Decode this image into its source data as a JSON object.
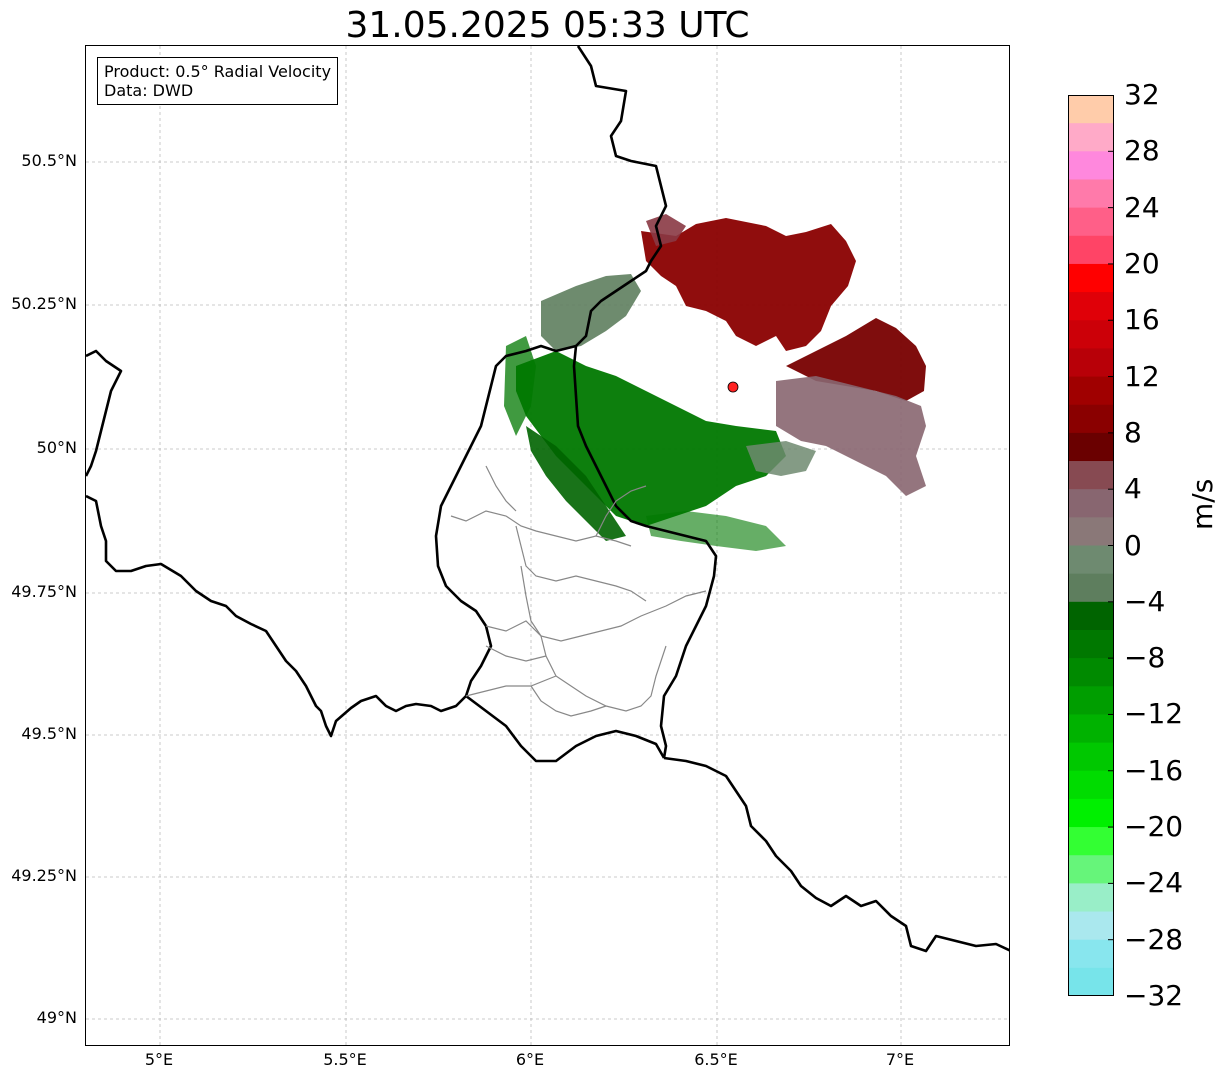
{
  "title": "31.05.2025 05:33 UTC",
  "info_box": {
    "line1": "Product: 0.5° Radial Velocity",
    "line2": "Data: DWD"
  },
  "axes": {
    "lat_ticks": [
      "50.5°N",
      "50.25°N",
      "50°N",
      "49.75°N",
      "49.5°N",
      "49.25°N",
      "49°N"
    ],
    "lon_ticks": [
      "5°E",
      "5.5°E",
      "6°E",
      "6.5°E",
      "7°E"
    ]
  },
  "colorbar": {
    "unit": "m/s",
    "range": [
      -32,
      32
    ],
    "tick_labels": [
      "32",
      "28",
      "24",
      "20",
      "16",
      "12",
      "8",
      "4",
      "0",
      "−4",
      "−8",
      "−12",
      "−16",
      "−20",
      "−24",
      "−28",
      "−32"
    ],
    "colors_top_to_bottom": [
      "#ffccaa",
      "#ffaac8",
      "#ff88dd",
      "#ff7aaa",
      "#ff5f88",
      "#ff4466",
      "#ff0000",
      "#e00008",
      "#cc0008",
      "#b80008",
      "#a00000",
      "#8a0000",
      "#6a0000",
      "#874a52",
      "#886670",
      "#8a7878",
      "#6e8a70",
      "#5e7e5e",
      "#006400",
      "#007800",
      "#008a00",
      "#009e00",
      "#00b200",
      "#00c800",
      "#00dc00",
      "#00f000",
      "#33ff33",
      "#66f57a",
      "#99eec8",
      "#aae8ee",
      "#88e6ee",
      "#77e4ea"
    ]
  },
  "map": {
    "radar_site_color": "#ff2222",
    "border_color": "#000000",
    "district_color": "#888888",
    "grid_color": "#bbbbbb"
  }
}
